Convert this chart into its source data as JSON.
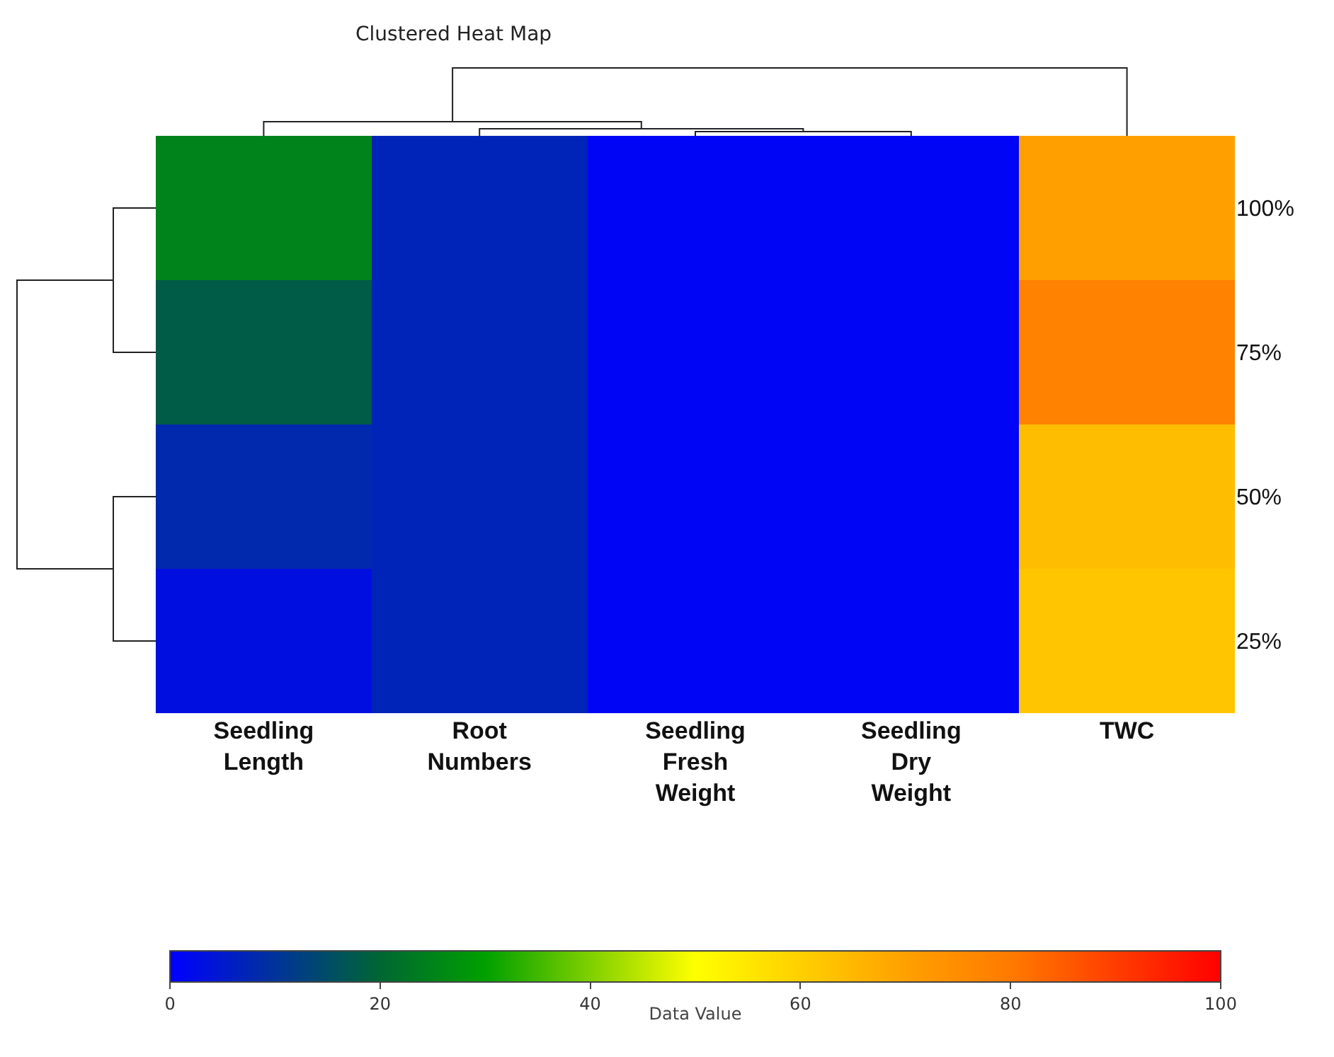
{
  "chart_data": {
    "type": "heatmap",
    "title": "Clustered Heat Map",
    "categories": [
      "Seedling Length",
      "Root Numbers",
      "Seedling Fresh Weight",
      "Seedling Dry Weight",
      "TWC"
    ],
    "y_categories": [
      "100%",
      "75%",
      "50%",
      "25%"
    ],
    "cells": [
      [
        25,
        7,
        1,
        1,
        70
      ],
      [
        18,
        7,
        1,
        1,
        78
      ],
      [
        8,
        7,
        1,
        1,
        64
      ],
      [
        3,
        7,
        1,
        1,
        62
      ]
    ],
    "clim": [
      0,
      100
    ],
    "cticks": [
      0,
      20,
      40,
      60,
      80,
      100
    ],
    "clabel": "Data Value"
  }
}
